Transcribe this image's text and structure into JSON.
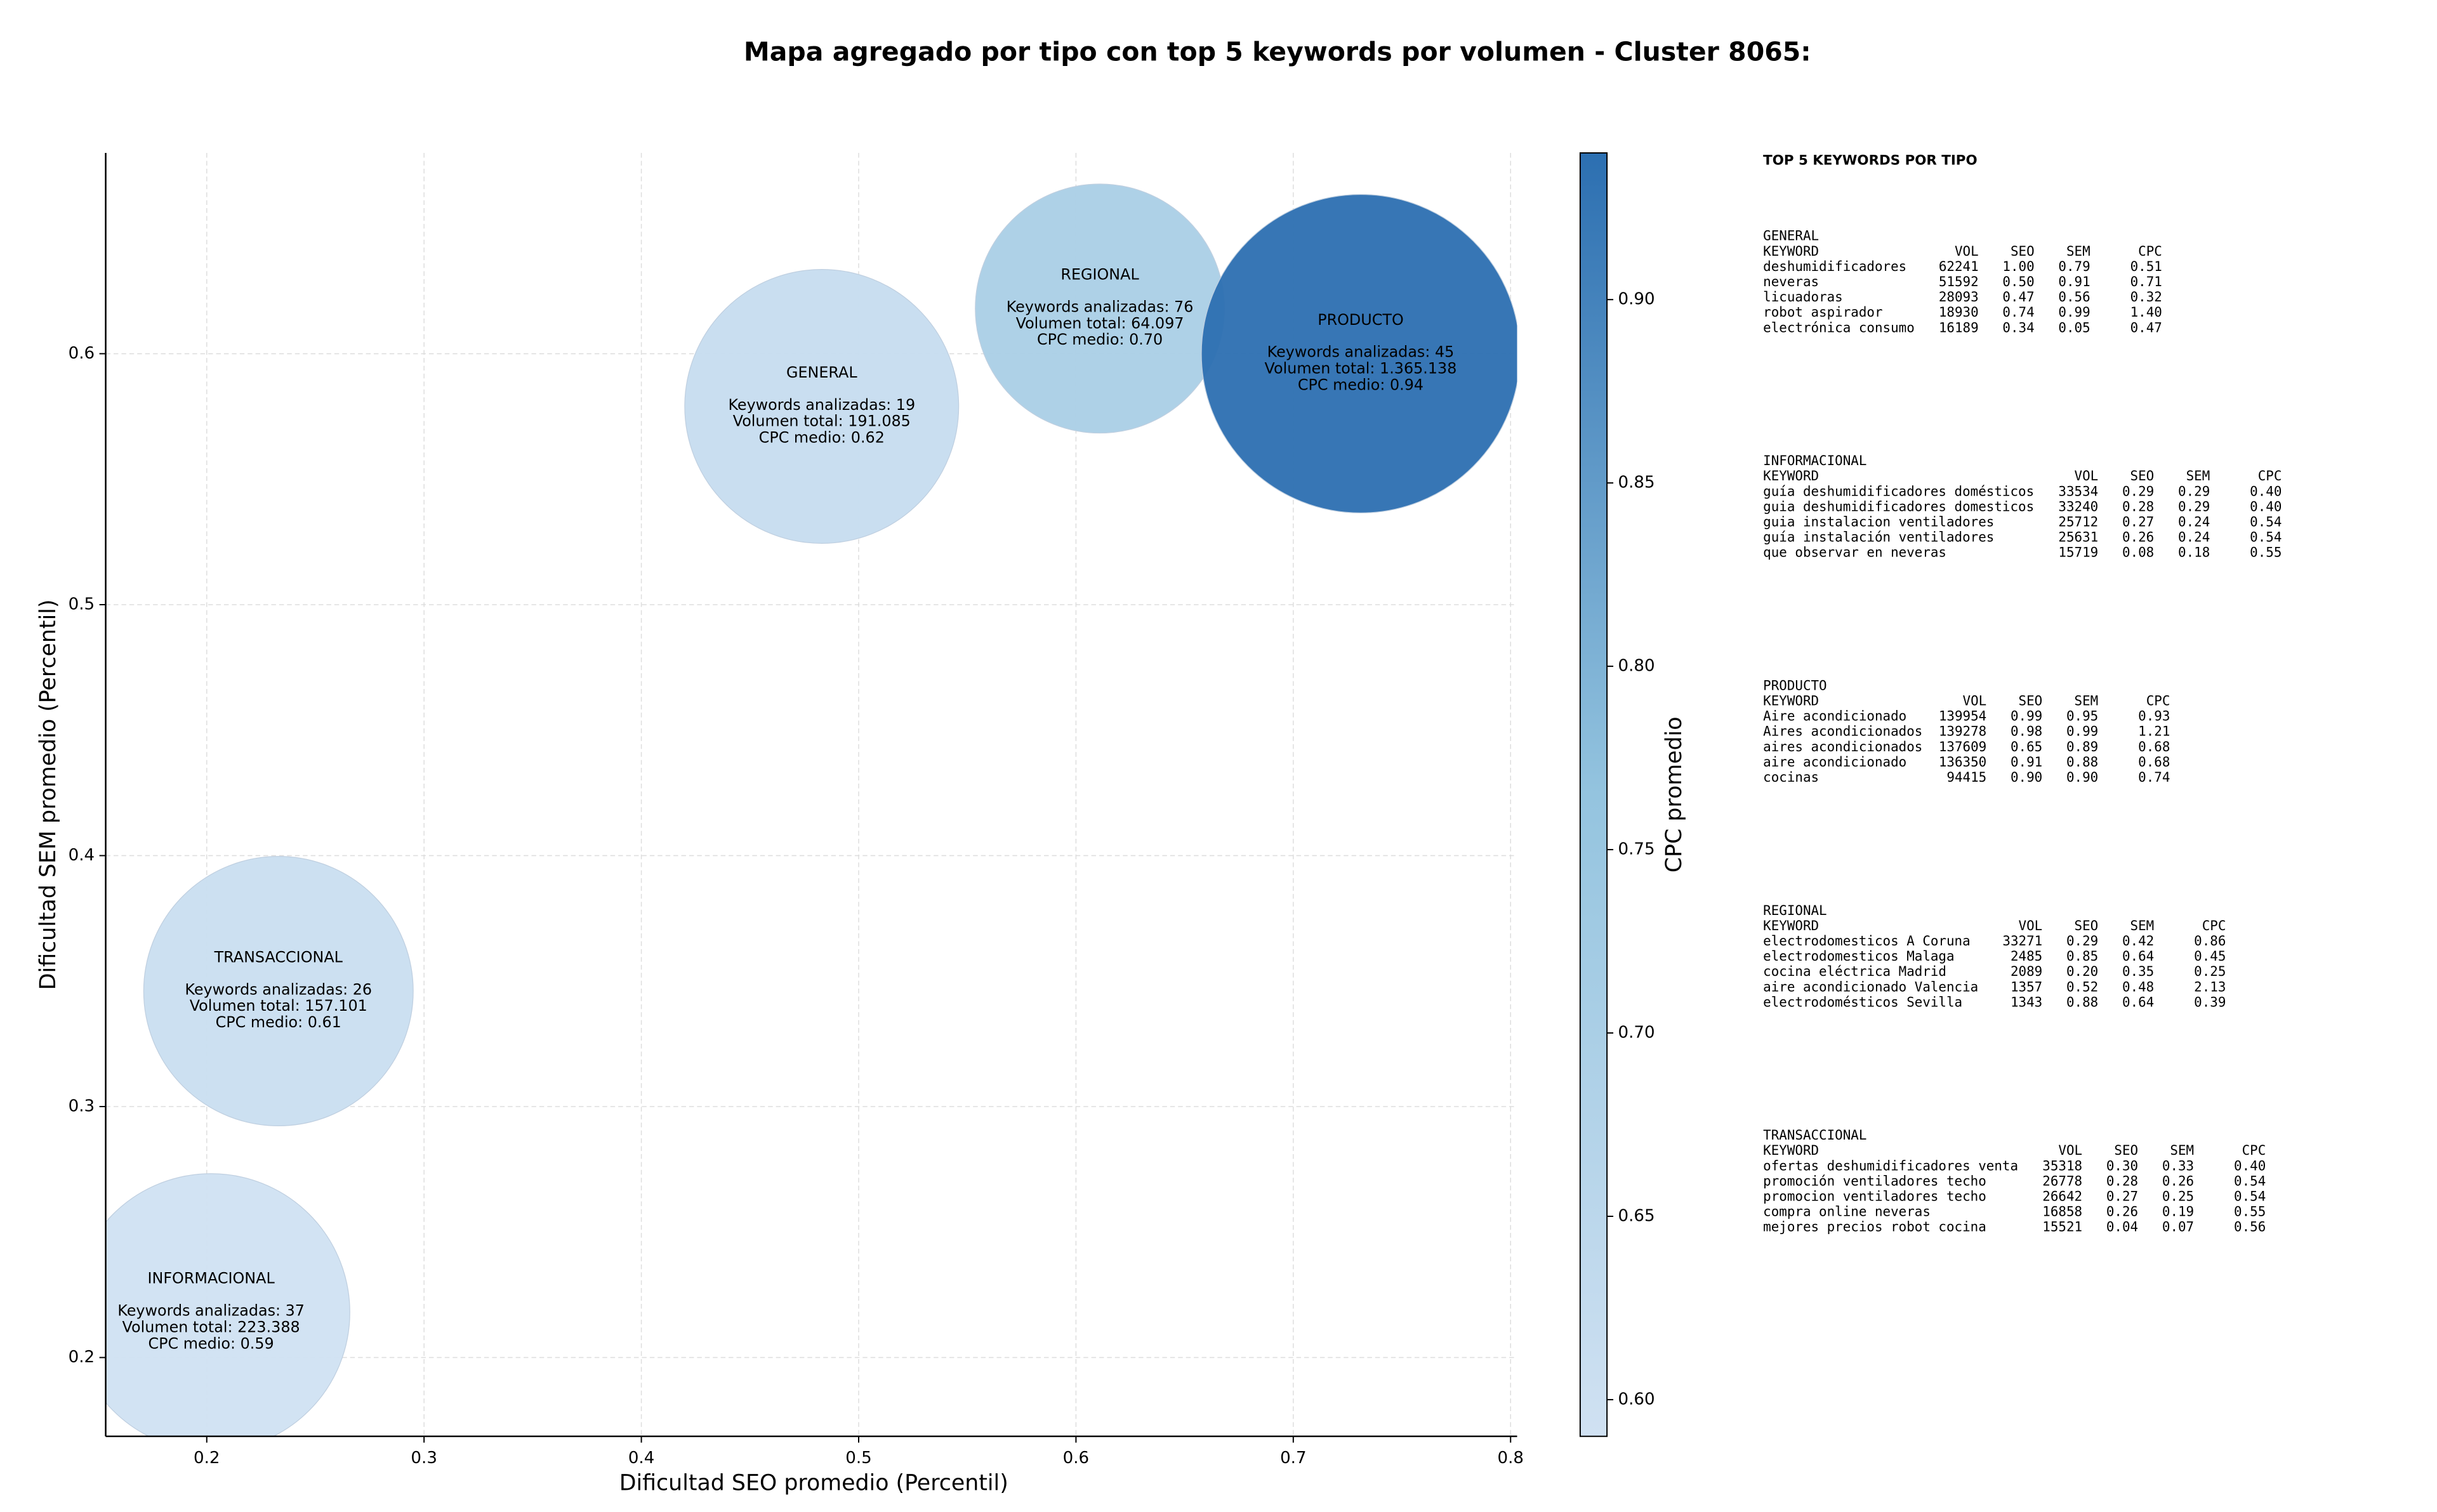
{
  "chart_data": {
    "type": "bubble",
    "title": "Mapa agregado por tipo con top 5 keywords por volumen - Cluster 8065:",
    "x_label": "Dificultad SEO promedio (Percentil)",
    "y_label": "Dificultad SEM promedio (Percentil)",
    "colorbar_label": "CPC promedio",
    "xlim": [
      0.1535,
      0.803
    ],
    "xticks": [
      0.2,
      0.3,
      0.4,
      0.5,
      0.6,
      0.7,
      0.8
    ],
    "ylim": [
      0.1686,
      0.68
    ],
    "yticks": [
      0.2,
      0.3,
      0.4,
      0.5,
      0.6
    ],
    "clim": [
      0.59,
      0.94
    ],
    "cticks": [
      {
        "value": 0.6,
        "label": "0.60"
      },
      0.65,
      {
        "value": 0.7,
        "label": "0.70"
      },
      0.75,
      {
        "value": 0.8,
        "label": "0.80"
      },
      0.85,
      {
        "value": 0.9,
        "label": "0.90"
      }
    ],
    "colormap": [
      "#d0e1f2",
      "#94c4df",
      "#2c6fb1"
    ],
    "grid": true,
    "points": [
      {
        "name": "GENERAL",
        "x": 0.483,
        "y": 0.579,
        "volume": 191085,
        "cpc": 0.62,
        "lines": [
          "Keywords analizadas: 19",
          "Volumen total: 191.085",
          "CPC medio: 0.62"
        ]
      },
      {
        "name": "REGIONAL",
        "x": 0.611,
        "y": 0.618,
        "volume": 64097,
        "cpc": 0.7,
        "lines": [
          "Keywords analizadas: 76",
          "Volumen total: 64.097",
          "CPC medio: 0.70"
        ]
      },
      {
        "name": "PRODUCTO",
        "x": 0.731,
        "y": 0.6,
        "volume": 1365138,
        "cpc": 0.94,
        "lines": [
          "Keywords analizadas: 45",
          "Volumen total: 1.365.138",
          "CPC medio: 0.94"
        ]
      },
      {
        "name": "TRANSACCIONAL",
        "x": 0.233,
        "y": 0.346,
        "volume": 157101,
        "cpc": 0.61,
        "lines": [
          "Keywords analizadas: 26",
          "Volumen total: 157.101",
          "CPC medio: 0.61"
        ]
      },
      {
        "name": "INFORMACIONAL",
        "x": 0.202,
        "y": 0.218,
        "volume": 223388,
        "cpc": 0.59,
        "lines": [
          "Keywords analizadas: 37",
          "Volumen total: 223.388",
          "CPC medio: 0.59"
        ]
      }
    ]
  },
  "side_panel": {
    "title": "TOP 5 KEYWORDS POR TIPO",
    "header": [
      "KEYWORD",
      "VOL",
      "SEO",
      "SEM",
      "CPC"
    ],
    "groups": [
      {
        "name": "GENERAL",
        "rows": [
          [
            "deshumidificadores",
            "62241",
            "1.00",
            "0.79",
            "0.51"
          ],
          [
            "neveras",
            "51592",
            "0.50",
            "0.91",
            "0.71"
          ],
          [
            "licuadoras",
            "28093",
            "0.47",
            "0.56",
            "0.32"
          ],
          [
            "robot aspirador",
            "18930",
            "0.74",
            "0.99",
            "1.40"
          ],
          [
            "electrónica consumo",
            "16189",
            "0.34",
            "0.05",
            "0.47"
          ]
        ]
      },
      {
        "name": "INFORMACIONAL",
        "rows": [
          [
            "guía deshumidificadores domésticos",
            "33534",
            "0.29",
            "0.29",
            "0.40"
          ],
          [
            "guia deshumidificadores domesticos",
            "33240",
            "0.28",
            "0.29",
            "0.40"
          ],
          [
            "guia instalacion ventiladores",
            "25712",
            "0.27",
            "0.24",
            "0.54"
          ],
          [
            "guía instalación ventiladores",
            "25631",
            "0.26",
            "0.24",
            "0.54"
          ],
          [
            "que observar en neveras",
            "15719",
            "0.08",
            "0.18",
            "0.55"
          ]
        ]
      },
      {
        "name": "PRODUCTO",
        "rows": [
          [
            "Aire acondicionado",
            "139954",
            "0.99",
            "0.95",
            "0.93"
          ],
          [
            "Aires acondicionados",
            "139278",
            "0.98",
            "0.99",
            "1.21"
          ],
          [
            "aires acondicionados",
            "137609",
            "0.65",
            "0.89",
            "0.68"
          ],
          [
            "aire acondicionado",
            "136350",
            "0.91",
            "0.88",
            "0.68"
          ],
          [
            "cocinas",
            "94415",
            "0.90",
            "0.90",
            "0.74"
          ]
        ]
      },
      {
        "name": "REGIONAL",
        "rows": [
          [
            "electrodomesticos A Coruna",
            "33271",
            "0.29",
            "0.42",
            "0.86"
          ],
          [
            "electrodomesticos Malaga",
            "2485",
            "0.85",
            "0.64",
            "0.45"
          ],
          [
            "cocina eléctrica Madrid",
            "2089",
            "0.20",
            "0.35",
            "0.25"
          ],
          [
            "aire acondicionado Valencia",
            "1357",
            "0.52",
            "0.48",
            "2.13"
          ],
          [
            "electrodomésticos Sevilla",
            "1343",
            "0.88",
            "0.64",
            "0.39"
          ]
        ]
      },
      {
        "name": "TRANSACCIONAL",
        "rows": [
          [
            "ofertas deshumidificadores venta",
            "35318",
            "0.30",
            "0.33",
            "0.40"
          ],
          [
            "promoción ventiladores techo",
            "26778",
            "0.28",
            "0.26",
            "0.54"
          ],
          [
            "promocion ventiladores techo",
            "26642",
            "0.27",
            "0.25",
            "0.54"
          ],
          [
            "compra online neveras",
            "16858",
            "0.26",
            "0.19",
            "0.55"
          ],
          [
            "mejores precios robot cocina",
            "15521",
            "0.04",
            "0.07",
            "0.56"
          ]
        ]
      }
    ]
  }
}
